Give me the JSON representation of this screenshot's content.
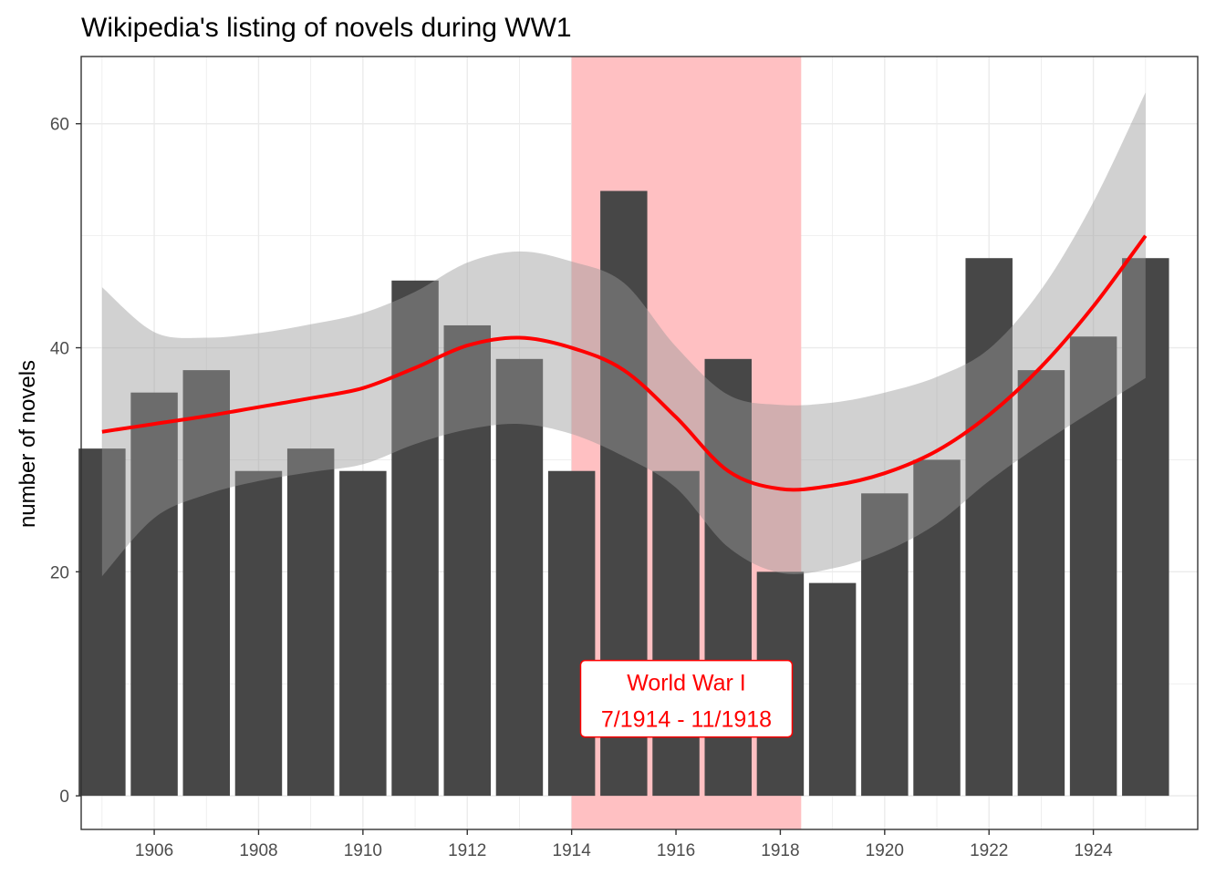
{
  "chart_data": {
    "type": "bar",
    "title": "Wikipedia's listing of novels during WW1",
    "xlabel": "",
    "ylabel": "number of novels",
    "categories": [
      1905,
      1906,
      1907,
      1908,
      1909,
      1910,
      1911,
      1912,
      1913,
      1914,
      1915,
      1916,
      1917,
      1918,
      1919,
      1920,
      1921,
      1922,
      1923,
      1924,
      1925
    ],
    "values": [
      31,
      36,
      38,
      29,
      31,
      29,
      46,
      42,
      39,
      29,
      54,
      29,
      39,
      20,
      19,
      27,
      30,
      48,
      38,
      41,
      48
    ],
    "xlim": [
      1904.6,
      1926.0
    ],
    "ylim": [
      -3,
      66
    ],
    "x_ticks": [
      1906,
      1908,
      1910,
      1912,
      1914,
      1916,
      1918,
      1920,
      1922,
      1924
    ],
    "x_tick_labels": [
      "1906",
      "1908",
      "1910",
      "1912",
      "1914",
      "1916",
      "1918",
      "1920",
      "1922",
      "1924"
    ],
    "y_ticks": [
      0,
      20,
      40,
      60
    ],
    "y_tick_labels": [
      "0",
      "20",
      "40",
      "60"
    ],
    "grid": true,
    "bar_color": "#474747",
    "highlight": {
      "x_start": 1914.0,
      "x_end": 1918.4,
      "color": "#ffc0c2"
    },
    "smooth": {
      "color": "#ff0000",
      "band_color": "#999999",
      "x": [
        1905,
        1906,
        1907,
        1908,
        1909,
        1910,
        1911,
        1912,
        1913,
        1914,
        1915,
        1916,
        1917,
        1918,
        1919,
        1920,
        1921,
        1922,
        1923,
        1924,
        1925
      ],
      "y": [
        32.5,
        33.2,
        33.9,
        34.7,
        35.5,
        36.4,
        38.2,
        40.2,
        40.9,
        40.0,
        38.0,
        33.8,
        29.0,
        27.4,
        27.7,
        28.8,
        30.8,
        34.0,
        38.3,
        43.7,
        50.0
      ],
      "lower": [
        19.6,
        24.8,
        26.9,
        28.1,
        28.9,
        29.6,
        31.4,
        32.7,
        33.2,
        32.3,
        30.3,
        27.5,
        22.2,
        19.9,
        20.3,
        21.8,
        24.3,
        28.1,
        31.4,
        34.4,
        37.3
      ],
      "upper": [
        45.4,
        41.4,
        40.9,
        41.3,
        42.1,
        43.1,
        45.0,
        47.6,
        48.6,
        47.7,
        45.8,
        40.1,
        35.8,
        34.9,
        35.1,
        36.0,
        37.4,
        39.9,
        45.2,
        53.0,
        62.8
      ]
    },
    "annotation": {
      "line1": "World War I",
      "line2": "7/1914 - 11/1918",
      "x": 1916.2,
      "y": 5,
      "color": "#ff0000"
    }
  }
}
